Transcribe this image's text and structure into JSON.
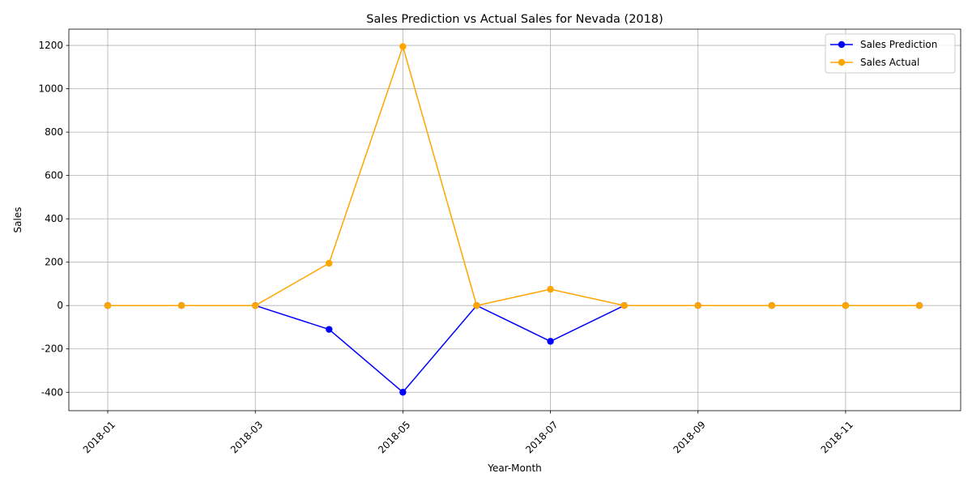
{
  "chart_data": {
    "type": "line",
    "title": "Sales Prediction vs Actual Sales for Nevada (2018)",
    "xlabel": "Year-Month",
    "ylabel": "Sales",
    "x": [
      "2018-01",
      "2018-02",
      "2018-03",
      "2018-04",
      "2018-05",
      "2018-06",
      "2018-07",
      "2018-08",
      "2018-09",
      "2018-10",
      "2018-11",
      "2018-12"
    ],
    "x_ticks": [
      "2018-01",
      "2018-03",
      "2018-05",
      "2018-07",
      "2018-09",
      "2018-11"
    ],
    "y_ticks": [
      -400,
      -200,
      0,
      200,
      400,
      600,
      800,
      1000,
      1200
    ],
    "ylim": [
      -485,
      1275
    ],
    "grid": true,
    "legend_position": "top-right",
    "series": [
      {
        "name": "Sales Prediction",
        "color": "#0000ff",
        "values": [
          0,
          0,
          0,
          -110,
          -400,
          0,
          -165,
          0,
          0,
          0,
          0,
          0
        ]
      },
      {
        "name": "Sales Actual",
        "color": "#ffa500",
        "values": [
          0,
          0,
          0,
          195,
          1195,
          0,
          75,
          0,
          0,
          0,
          0,
          0
        ]
      }
    ]
  }
}
